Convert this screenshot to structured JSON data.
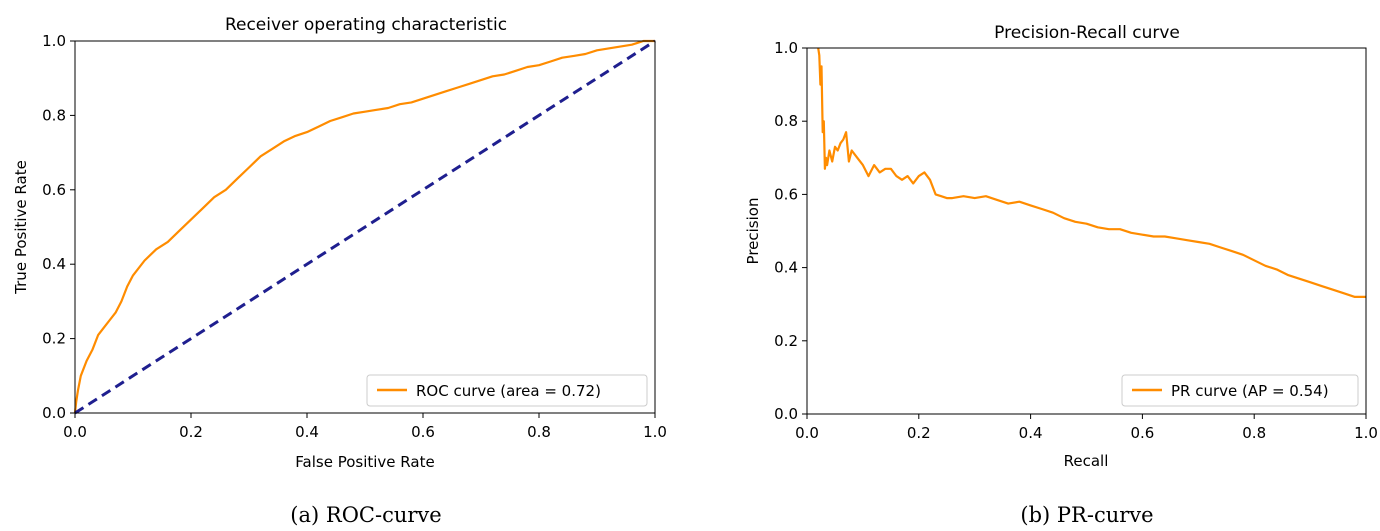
{
  "chart_data": [
    {
      "type": "line",
      "title": "Receiver operating characteristic",
      "xlabel": "False Positive Rate",
      "ylabel": "True Positive Rate",
      "xlim": [
        0,
        1
      ],
      "ylim": [
        0,
        1
      ],
      "xticks": [
        "0.0",
        "0.2",
        "0.4",
        "0.6",
        "0.8",
        "1.0"
      ],
      "yticks": [
        "0.0",
        "0.2",
        "0.4",
        "0.6",
        "0.8",
        "1.0"
      ],
      "grid": false,
      "legend_position": "lower-right",
      "caption": "(a) ROC-curve",
      "series": [
        {
          "name": "ROC curve (area = 0.72)",
          "color": "#ff8c00",
          "style": "solid",
          "x": [
            0.0,
            0.002,
            0.005,
            0.01,
            0.02,
            0.03,
            0.04,
            0.05,
            0.06,
            0.07,
            0.08,
            0.09,
            0.1,
            0.12,
            0.14,
            0.16,
            0.18,
            0.2,
            0.22,
            0.24,
            0.26,
            0.28,
            0.3,
            0.32,
            0.34,
            0.36,
            0.38,
            0.4,
            0.42,
            0.44,
            0.46,
            0.48,
            0.5,
            0.52,
            0.54,
            0.56,
            0.58,
            0.6,
            0.62,
            0.64,
            0.66,
            0.68,
            0.7,
            0.72,
            0.74,
            0.76,
            0.78,
            0.8,
            0.82,
            0.84,
            0.86,
            0.88,
            0.9,
            0.92,
            0.94,
            0.96,
            0.98,
            1.0
          ],
          "y": [
            0.0,
            0.03,
            0.06,
            0.1,
            0.14,
            0.17,
            0.21,
            0.23,
            0.25,
            0.27,
            0.3,
            0.34,
            0.37,
            0.41,
            0.44,
            0.46,
            0.49,
            0.52,
            0.55,
            0.58,
            0.6,
            0.63,
            0.66,
            0.69,
            0.71,
            0.73,
            0.745,
            0.755,
            0.77,
            0.785,
            0.795,
            0.805,
            0.81,
            0.815,
            0.82,
            0.83,
            0.835,
            0.845,
            0.855,
            0.865,
            0.875,
            0.885,
            0.895,
            0.905,
            0.91,
            0.92,
            0.93,
            0.935,
            0.945,
            0.955,
            0.96,
            0.965,
            0.975,
            0.98,
            0.985,
            0.99,
            1.0,
            1.0
          ]
        },
        {
          "name": "",
          "color": "#1f1f8f",
          "style": "dashed",
          "x": [
            0,
            1
          ],
          "y": [
            0,
            1
          ]
        }
      ]
    },
    {
      "type": "line",
      "title": "Precision-Recall curve",
      "xlabel": "Recall",
      "ylabel": "Precision",
      "xlim": [
        0,
        1
      ],
      "ylim": [
        0,
        1
      ],
      "xticks": [
        "0.0",
        "0.2",
        "0.4",
        "0.6",
        "0.8",
        "1.0"
      ],
      "yticks": [
        "0.0",
        "0.2",
        "0.4",
        "0.6",
        "0.8",
        "1.0"
      ],
      "grid": false,
      "legend_position": "lower-right",
      "caption": "(b) PR-curve",
      "series": [
        {
          "name": "PR curve (AP = 0.54)",
          "color": "#ff8c00",
          "style": "solid",
          "x": [
            0.02,
            0.022,
            0.024,
            0.026,
            0.028,
            0.03,
            0.032,
            0.034,
            0.036,
            0.04,
            0.045,
            0.05,
            0.055,
            0.06,
            0.065,
            0.07,
            0.075,
            0.08,
            0.09,
            0.1,
            0.11,
            0.12,
            0.13,
            0.14,
            0.15,
            0.16,
            0.17,
            0.18,
            0.19,
            0.2,
            0.21,
            0.22,
            0.23,
            0.24,
            0.25,
            0.26,
            0.28,
            0.3,
            0.32,
            0.34,
            0.36,
            0.38,
            0.4,
            0.42,
            0.44,
            0.46,
            0.48,
            0.5,
            0.52,
            0.54,
            0.56,
            0.58,
            0.6,
            0.62,
            0.64,
            0.66,
            0.68,
            0.7,
            0.72,
            0.74,
            0.76,
            0.78,
            0.8,
            0.82,
            0.84,
            0.86,
            0.88,
            0.9,
            0.92,
            0.94,
            0.96,
            0.98,
            1.0
          ],
          "y": [
            1.0,
            0.98,
            0.9,
            0.95,
            0.77,
            0.8,
            0.67,
            0.7,
            0.68,
            0.72,
            0.69,
            0.73,
            0.72,
            0.74,
            0.75,
            0.77,
            0.69,
            0.72,
            0.7,
            0.68,
            0.65,
            0.68,
            0.66,
            0.67,
            0.67,
            0.65,
            0.64,
            0.65,
            0.63,
            0.65,
            0.66,
            0.64,
            0.6,
            0.595,
            0.59,
            0.59,
            0.595,
            0.59,
            0.595,
            0.585,
            0.575,
            0.58,
            0.57,
            0.56,
            0.55,
            0.535,
            0.525,
            0.52,
            0.51,
            0.505,
            0.505,
            0.495,
            0.49,
            0.485,
            0.485,
            0.48,
            0.475,
            0.47,
            0.465,
            0.455,
            0.445,
            0.435,
            0.42,
            0.405,
            0.395,
            0.38,
            0.37,
            0.36,
            0.35,
            0.34,
            0.33,
            0.32,
            0.32
          ]
        }
      ]
    }
  ]
}
